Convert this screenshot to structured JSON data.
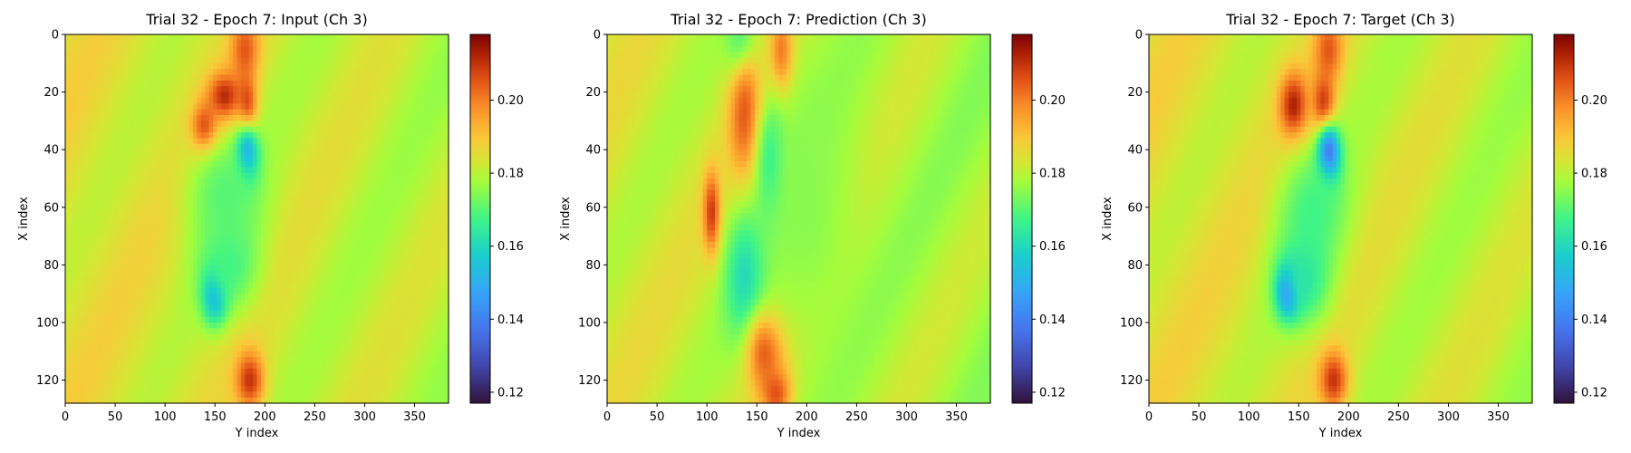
{
  "colormap": "turbo",
  "chart_data": [
    {
      "type": "heatmap",
      "title": "Trial 32 - Epoch 7: Input (Ch 3)",
      "xlabel": "Y index",
      "ylabel": "X index",
      "xlim": [
        0,
        384
      ],
      "ylim": [
        128,
        0
      ],
      "xticks": [
        0,
        50,
        100,
        150,
        200,
        250,
        300,
        350
      ],
      "yticks": [
        0,
        20,
        40,
        60,
        80,
        100,
        120
      ],
      "colorbar": {
        "vmin": 0.117,
        "vmax": 0.218,
        "ticks": [
          0.12,
          0.14,
          0.16,
          0.18,
          0.2
        ],
        "tick_labels": [
          "0.12",
          "0.14",
          "0.16",
          "0.18",
          "0.20"
        ]
      },
      "background": 0.185,
      "features": [
        {
          "y": 180,
          "x": 5,
          "sy": 10,
          "sx": 8,
          "v": 0.205
        },
        {
          "y": 160,
          "x": 22,
          "sy": 12,
          "sx": 6,
          "v": 0.214
        },
        {
          "y": 140,
          "x": 33,
          "sy": 9,
          "sx": 6,
          "v": 0.214
        },
        {
          "y": 182,
          "x": 26,
          "sy": 7,
          "sx": 8,
          "v": 0.212
        },
        {
          "y": 182,
          "x": 42,
          "sy": 8,
          "sx": 7,
          "v": 0.138
        },
        {
          "y": 160,
          "x": 55,
          "sy": 28,
          "sx": 14,
          "v": 0.17
        },
        {
          "y": 150,
          "x": 90,
          "sy": 9,
          "sx": 7,
          "v": 0.142
        },
        {
          "y": 165,
          "x": 80,
          "sy": 22,
          "sx": 12,
          "v": 0.168
        },
        {
          "y": 185,
          "x": 120,
          "sy": 10,
          "sx": 7,
          "v": 0.21
        }
      ]
    },
    {
      "type": "heatmap",
      "title": "Trial 32 - Epoch 7: Prediction (Ch 3)",
      "xlabel": "Y index",
      "ylabel": "X index",
      "xlim": [
        0,
        384
      ],
      "ylim": [
        128,
        0
      ],
      "xticks": [
        0,
        50,
        100,
        150,
        200,
        250,
        300,
        350
      ],
      "yticks": [
        0,
        20,
        40,
        60,
        80,
        100,
        120
      ],
      "colorbar": {
        "vmin": 0.117,
        "vmax": 0.218,
        "ticks": [
          0.12,
          0.14,
          0.16,
          0.18,
          0.2
        ],
        "tick_labels": [
          "0.12",
          "0.14",
          "0.16",
          "0.18",
          "0.20"
        ]
      },
      "background": 0.183,
      "features": [
        {
          "y": 135,
          "x": 5,
          "sy": 10,
          "sx": 8,
          "v": 0.16
        },
        {
          "y": 175,
          "x": 8,
          "sy": 8,
          "sx": 10,
          "v": 0.214
        },
        {
          "y": 140,
          "x": 30,
          "sy": 12,
          "sx": 16,
          "v": 0.214
        },
        {
          "y": 165,
          "x": 45,
          "sy": 10,
          "sx": 14,
          "v": 0.155
        },
        {
          "y": 105,
          "x": 62,
          "sy": 6,
          "sx": 10,
          "v": 0.212
        },
        {
          "y": 140,
          "x": 85,
          "sy": 14,
          "sx": 16,
          "v": 0.155
        },
        {
          "y": 160,
          "x": 110,
          "sy": 14,
          "sx": 10,
          "v": 0.214
        },
        {
          "y": 170,
          "x": 124,
          "sy": 10,
          "sx": 6,
          "v": 0.214
        },
        {
          "y": 200,
          "x": 60,
          "sy": 40,
          "sx": 40,
          "v": 0.175
        }
      ]
    },
    {
      "type": "heatmap",
      "title": "Trial 32 - Epoch 7: Target (Ch 3)",
      "xlabel": "Y index",
      "ylabel": "X index",
      "xlim": [
        0,
        384
      ],
      "ylim": [
        128,
        0
      ],
      "xticks": [
        0,
        50,
        100,
        150,
        200,
        250,
        300,
        350
      ],
      "yticks": [
        0,
        20,
        40,
        60,
        80,
        100,
        120
      ],
      "colorbar": {
        "vmin": 0.117,
        "vmax": 0.218,
        "ticks": [
          0.12,
          0.14,
          0.16,
          0.18,
          0.2
        ],
        "tick_labels": [
          "0.12",
          "0.14",
          "0.16",
          "0.18",
          "0.20"
        ]
      },
      "background": 0.185,
      "features": [
        {
          "y": 180,
          "x": 5,
          "sy": 10,
          "sx": 8,
          "v": 0.205
        },
        {
          "y": 145,
          "x": 25,
          "sy": 10,
          "sx": 8,
          "v": 0.214
        },
        {
          "y": 175,
          "x": 25,
          "sy": 8,
          "sx": 8,
          "v": 0.212
        },
        {
          "y": 180,
          "x": 42,
          "sy": 8,
          "sx": 7,
          "v": 0.125
        },
        {
          "y": 165,
          "x": 60,
          "sy": 25,
          "sx": 14,
          "v": 0.168
        },
        {
          "y": 140,
          "x": 89,
          "sy": 8,
          "sx": 6,
          "v": 0.12
        },
        {
          "y": 155,
          "x": 85,
          "sy": 20,
          "sx": 12,
          "v": 0.163
        },
        {
          "y": 185,
          "x": 120,
          "sy": 10,
          "sx": 7,
          "v": 0.21
        }
      ]
    }
  ]
}
